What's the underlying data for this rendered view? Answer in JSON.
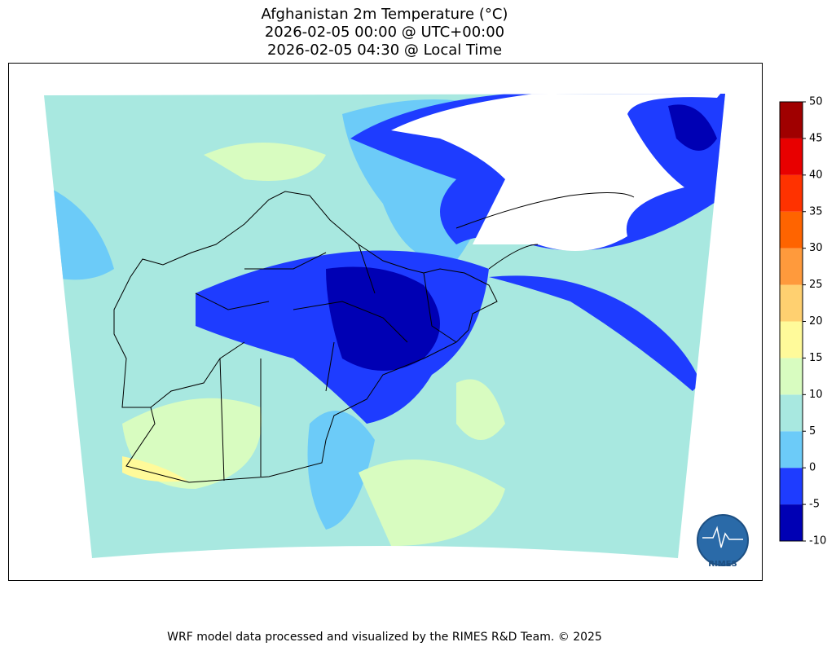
{
  "title": [
    "Afghanistan 2m Temperature (°C)",
    "2026-02-05 00:00 @ UTC+00:00",
    "2026-02-05 04:30 @ Local Time"
  ],
  "colorbar": {
    "levels": [
      -10,
      -5,
      0,
      5,
      10,
      15,
      20,
      25,
      30,
      35,
      40,
      45,
      50
    ],
    "colors": [
      "#0000b4",
      "#1e3cff",
      "#6ccbf8",
      "#a8e8e0",
      "#d8fcc0",
      "#fffa9a",
      "#ffd070",
      "#ff9a3c",
      "#ff6400",
      "#ff3200",
      "#e80000",
      "#a00000"
    ]
  },
  "logo": "RIMES",
  "footer": "WRF model data processed and visualized by the RIMES R&D Team. © 2025"
}
